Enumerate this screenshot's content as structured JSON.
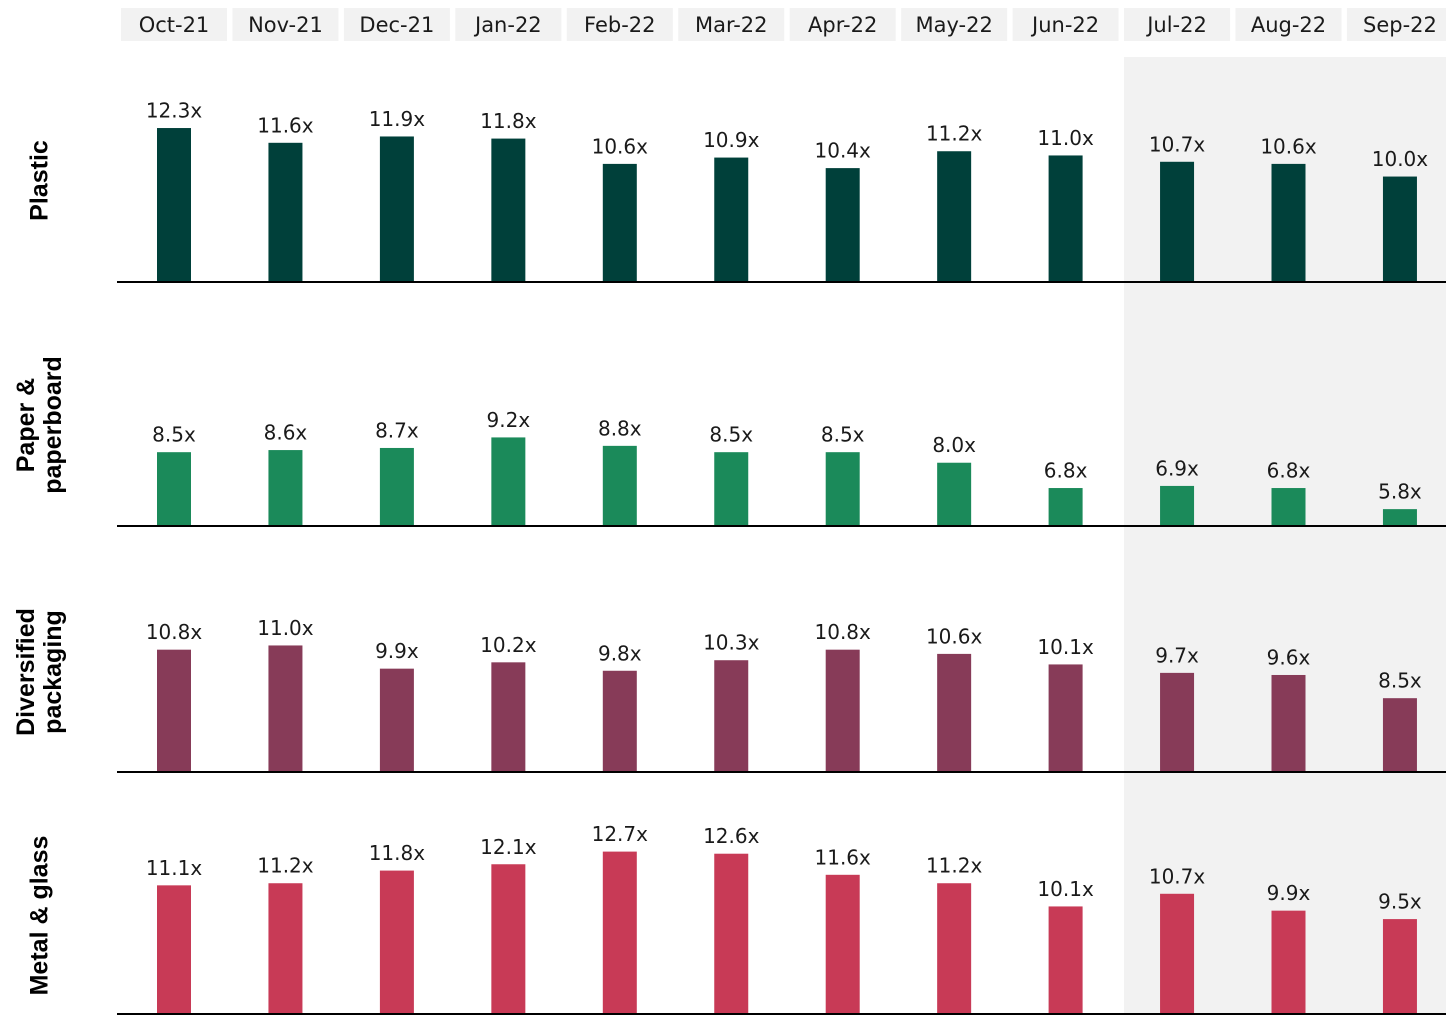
{
  "chart_data": {
    "type": "bar",
    "categories": [
      "Oct-21",
      "Nov-21",
      "Dec-21",
      "Jan-22",
      "Feb-22",
      "Mar-22",
      "Apr-22",
      "May-22",
      "Jun-22",
      "Jul-22",
      "Aug-22",
      "Sep-22"
    ],
    "ylim": [
      5,
      16
    ],
    "series": [
      {
        "name": "Plastic",
        "color": "#00403a",
        "values": [
          12.3,
          11.6,
          11.9,
          11.8,
          10.6,
          10.9,
          10.4,
          11.2,
          11.0,
          10.7,
          10.6,
          10.0
        ],
        "value_labels": [
          "12.3x",
          "11.6x",
          "11.9x",
          "11.8x",
          "10.6x",
          "10.9x",
          "10.4x",
          "11.2x",
          "11.0x",
          "10.7x",
          "10.6x",
          "10.0x"
        ]
      },
      {
        "name": "Paper & paperboard",
        "color": "#1b8a5a",
        "values": [
          8.5,
          8.6,
          8.7,
          9.2,
          8.8,
          8.5,
          8.5,
          8.0,
          6.8,
          6.9,
          6.8,
          5.8
        ],
        "value_labels": [
          "8.5x",
          "8.6x",
          "8.7x",
          "9.2x",
          "8.8x",
          "8.5x",
          "8.5x",
          "8.0x",
          "6.8x",
          "6.9x",
          "6.8x",
          "5.8x"
        ]
      },
      {
        "name": "Diversified packaging",
        "color": "#873b58",
        "values": [
          10.8,
          11.0,
          9.9,
          10.2,
          9.8,
          10.3,
          10.8,
          10.6,
          10.1,
          9.7,
          9.6,
          8.5
        ],
        "value_labels": [
          "10.8x",
          "11.0x",
          "9.9x",
          "10.2x",
          "9.8x",
          "10.3x",
          "10.8x",
          "10.6x",
          "10.1x",
          "9.7x",
          "9.6x",
          "8.5x"
        ]
      },
      {
        "name": "Metal & glass",
        "color": "#c83a56",
        "values": [
          11.1,
          11.2,
          11.8,
          12.1,
          12.7,
          12.6,
          11.6,
          11.2,
          10.1,
          10.7,
          9.9,
          9.5
        ],
        "value_labels": [
          "11.1x",
          "11.2x",
          "11.8x",
          "12.1x",
          "12.7x",
          "12.6x",
          "11.6x",
          "11.2x",
          "10.1x",
          "10.7x",
          "9.9x",
          "9.5x"
        ]
      }
    ]
  }
}
